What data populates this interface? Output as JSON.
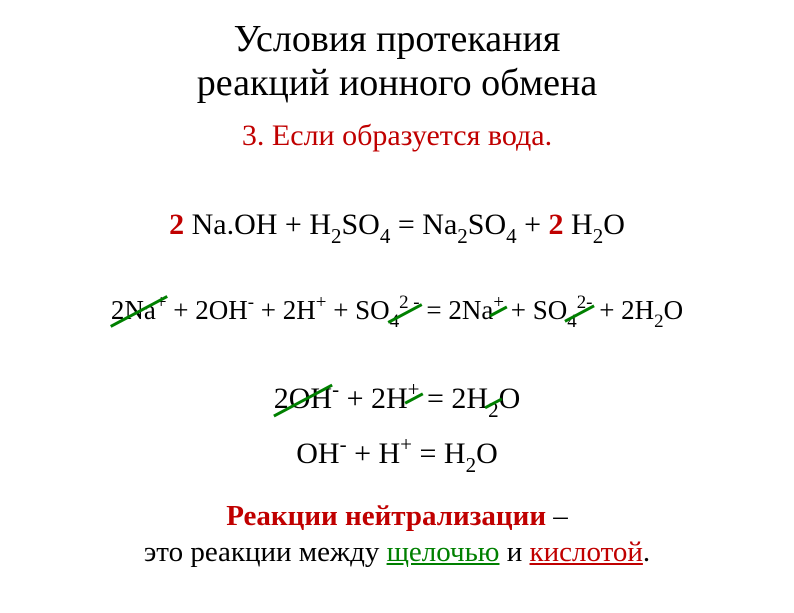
{
  "title_line1": "Условия протекания",
  "title_line2": "реакций ионного обмена",
  "subtitle_num": "3.",
  "subtitle_text": " Если образуется вода.",
  "coef_2a": "2",
  "coef_2b": "2",
  "eq1_frag1": " Na.OH  +   H",
  "eq1_sub1": "2",
  "eq1_frag2": "SO",
  "eq1_sub2": "4",
  "eq1_frag3": "  =   Na",
  "eq1_sub3": "2",
  "eq1_frag4": "SO",
  "eq1_sub4": "4",
  "eq1_frag5": "  + ",
  "eq1_frag6": " H",
  "eq1_sub6": "2",
  "eq1_frag7": "O",
  "eq2_t1": "2Na",
  "eq2_sup_plus": "+",
  "eq2_t2": " +  2OH",
  "eq2_sup_minus": "-",
  "eq2_t3": " + 2H",
  "eq2_t4": " +  SO",
  "eq2_sub4": "4",
  "eq2_sup_2minus": "2 -",
  "eq2_t5": " = 2Na",
  "eq2_t6": " +  SO",
  "eq2_sup_2minus2": "2-",
  "eq2_t7": " + 2H",
  "eq2_sub2": "2",
  "eq2_t8": "O",
  "eq3_t1": "2OH",
  "eq3_t2": "   + 2H",
  "eq3_t3": "     = 2H",
  "eq3_t4": "O",
  "eq4_t1": "OH",
  "eq4_t2": "   +  H",
  "eq4_t3": "    =  H",
  "eq4_t4": "O",
  "footer_l1a": "Реакции нейтрализации",
  "footer_l1b": " –",
  "footer_l2a": "это реакции между ",
  "footer_l2b": "щелочью",
  "footer_l2c": " и ",
  "footer_l2d": "кислотой",
  "footer_l2e": ".",
  "colors": {
    "red": "#c00000",
    "green": "#008000",
    "text": "#000000",
    "bg": "#ffffff"
  }
}
